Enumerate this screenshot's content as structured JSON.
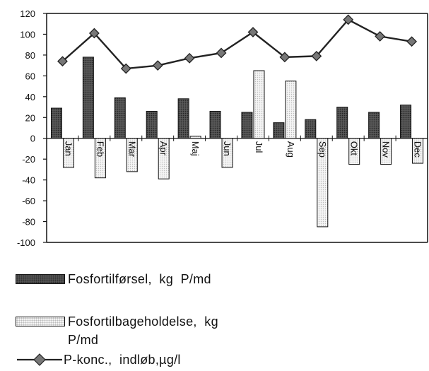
{
  "chart_data": {
    "type": "bar",
    "categories": [
      "Jan",
      "Feb",
      "Mar",
      "Apr",
      "Maj",
      "Jun",
      "Jul",
      "Aug",
      "Sep",
      "Okt",
      "Nov",
      "Dec"
    ],
    "series": [
      {
        "name": "Fosfortilførsel,  kg  P/md",
        "type": "bar",
        "color": "#4a4a4a",
        "values": [
          29,
          78,
          39,
          26,
          38,
          26,
          25,
          15,
          18,
          30,
          25,
          32
        ]
      },
      {
        "name": "Fosfortilbageholdelse,  kg\nP/md",
        "type": "bar",
        "color": "#f2f2f2",
        "values": [
          -28,
          -38,
          -32,
          -39,
          2,
          -28,
          65,
          55,
          -85,
          -25,
          -25,
          -24
        ]
      },
      {
        "name": "P-konc.,  indløb,µg/l",
        "type": "line",
        "color": "#222222",
        "values": [
          74,
          101,
          67,
          70,
          77,
          82,
          102,
          78,
          79,
          114,
          98,
          93
        ]
      }
    ],
    "ylim": [
      -100,
      120
    ],
    "yticks": [
      120,
      100,
      80,
      60,
      40,
      20,
      0,
      -20,
      -40,
      -60,
      -80,
      -100
    ],
    "xlabel": "",
    "ylabel": "",
    "grid": false,
    "legend_position": "bottom"
  }
}
